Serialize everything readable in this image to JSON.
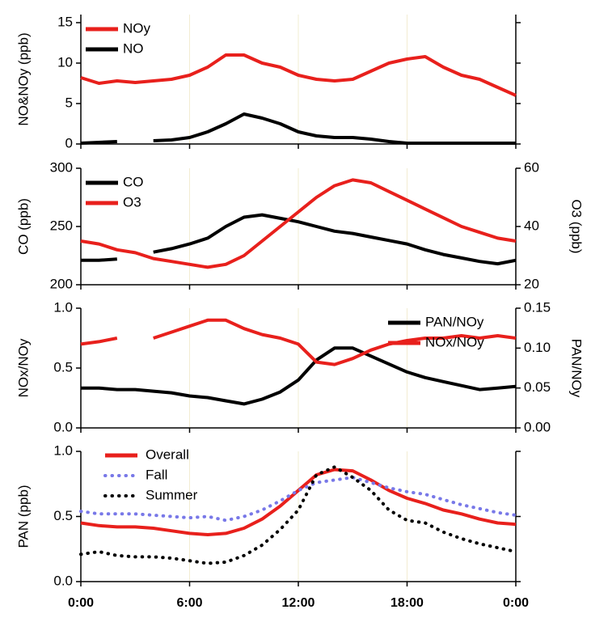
{
  "chart_data": [
    {
      "type": "line",
      "ylabel": "NO&NOy (ppb)",
      "legend": "upper left",
      "x": [
        0,
        1,
        2,
        3,
        4,
        5,
        6,
        7,
        8,
        9,
        10,
        11,
        12,
        13,
        14,
        15,
        16,
        17,
        18,
        19,
        20,
        21,
        22,
        23,
        24
      ],
      "xlim": [
        0,
        24
      ],
      "xticks": [
        0,
        6,
        12,
        18,
        24
      ],
      "ylim": [
        0,
        16
      ],
      "yticks": [
        0,
        5,
        10,
        15
      ],
      "grid": true,
      "series": [
        {
          "name": "NOy",
          "color": "#e8201c",
          "values": [
            8.2,
            7.5,
            7.8,
            7.6,
            7.8,
            8,
            8.5,
            9.5,
            11,
            11,
            10,
            9.5,
            8.5,
            8,
            7.8,
            8,
            9,
            10,
            10.5,
            10.8,
            9.5,
            8.5,
            8,
            7,
            6
          ]
        },
        {
          "name": "NO",
          "color": "#000000",
          "values": [
            0.1,
            0.2,
            0.3,
            null,
            0.4,
            0.5,
            0.8,
            1.5,
            2.5,
            3.7,
            3.2,
            2.5,
            1.5,
            1,
            0.8,
            0.8,
            0.6,
            0.3,
            0.1,
            0.1,
            0.1,
            0.1,
            0.1,
            0.1,
            0.1
          ]
        }
      ]
    },
    {
      "type": "line",
      "ylabel": "CO (ppb)",
      "y2label": "O3 (ppb)",
      "legend": "upper left",
      "x": [
        0,
        1,
        2,
        3,
        4,
        5,
        6,
        7,
        8,
        9,
        10,
        11,
        12,
        13,
        14,
        15,
        16,
        17,
        18,
        19,
        20,
        21,
        22,
        23,
        24
      ],
      "xlim": [
        0,
        24
      ],
      "xticks": [
        0,
        6,
        12,
        18,
        24
      ],
      "ylim": [
        200,
        300
      ],
      "yticks": [
        200,
        250,
        300
      ],
      "y2lim": [
        20,
        60
      ],
      "y2ticks": [
        20,
        40,
        60
      ],
      "grid": true,
      "series": [
        {
          "name": "CO",
          "color": "#000000",
          "values": [
            221,
            221,
            222,
            null,
            228,
            231,
            235,
            240,
            250,
            258,
            260,
            257,
            254,
            250,
            246,
            244,
            241,
            238,
            235,
            230,
            226,
            223,
            220,
            218,
            221
          ]
        },
        {
          "name": "O3",
          "color": "#e8201c",
          "axis": "y2",
          "values": [
            35,
            34,
            32,
            31,
            29,
            28,
            27,
            26,
            27,
            30,
            35,
            40,
            45,
            50,
            54,
            56,
            55,
            52,
            49,
            46,
            43,
            40,
            38,
            36,
            35
          ]
        }
      ]
    },
    {
      "type": "line",
      "ylabel": "NOx/NOy",
      "y2label": "PAN/NOy",
      "legend": "upper right",
      "x": [
        0,
        1,
        2,
        3,
        4,
        5,
        6,
        7,
        8,
        9,
        10,
        11,
        12,
        13,
        14,
        15,
        16,
        17,
        18,
        19,
        20,
        21,
        22,
        23,
        24
      ],
      "xlim": [
        0,
        24
      ],
      "xticks": [
        0,
        6,
        12,
        18,
        24
      ],
      "ylim": [
        0,
        1
      ],
      "yticks": [
        {
          "value": 0,
          "label": "0.0"
        },
        {
          "value": 0.5,
          "label": "0.5"
        },
        {
          "value": 1,
          "label": "1.0"
        }
      ],
      "y2lim": [
        0,
        0.15
      ],
      "y2ticks": [
        {
          "value": 0,
          "label": "0.00"
        },
        {
          "value": 0.05,
          "label": "0.05"
        },
        {
          "value": 0.1,
          "label": "0.10"
        },
        {
          "value": 0.15,
          "label": "0.15"
        }
      ],
      "grid": true,
      "series": [
        {
          "name": "PAN/NOy",
          "color": "#000000",
          "axis": "y2",
          "values": [
            0.05,
            0.05,
            0.048,
            0.048,
            0.046,
            0.044,
            0.04,
            0.038,
            0.034,
            0.03,
            0.036,
            0.045,
            0.06,
            0.085,
            0.1,
            0.1,
            0.09,
            0.08,
            0.07,
            0.063,
            0.058,
            0.053,
            0.048,
            0.05,
            0.052
          ]
        },
        {
          "name": "NOx/NOy",
          "color": "#e8201c",
          "values": [
            0.7,
            0.72,
            0.75,
            null,
            0.75,
            0.8,
            0.85,
            0.9,
            0.9,
            0.83,
            0.78,
            0.75,
            0.7,
            0.55,
            0.53,
            0.58,
            0.65,
            0.7,
            0.73,
            0.75,
            0.75,
            0.77,
            0.75,
            0.77,
            0.75
          ]
        }
      ]
    },
    {
      "type": "line",
      "ylabel": "PAN (ppb)",
      "legend": "upper left",
      "x": [
        0,
        1,
        2,
        3,
        4,
        5,
        6,
        7,
        8,
        9,
        10,
        11,
        12,
        13,
        14,
        15,
        16,
        17,
        18,
        19,
        20,
        21,
        22,
        23,
        24
      ],
      "xlim": [
        0,
        24
      ],
      "xticks": [
        {
          "value": 0,
          "label": "0:00"
        },
        {
          "value": 6,
          "label": "6:00"
        },
        {
          "value": 12,
          "label": "12:00"
        },
        {
          "value": 18,
          "label": "18:00"
        },
        {
          "value": 24,
          "label": "0:00"
        }
      ],
      "ylim": [
        0,
        1
      ],
      "yticks": [
        {
          "value": 0,
          "label": "0.0"
        },
        {
          "value": 0.5,
          "label": "0.5"
        },
        {
          "value": 1,
          "label": "1.0"
        }
      ],
      "grid": true,
      "series": [
        {
          "name": "Overall",
          "color": "#e8201c",
          "style": "solid",
          "values": [
            0.45,
            0.43,
            0.42,
            0.42,
            0.41,
            0.39,
            0.37,
            0.36,
            0.37,
            0.41,
            0.48,
            0.58,
            0.7,
            0.82,
            0.86,
            0.85,
            0.78,
            0.7,
            0.64,
            0.6,
            0.55,
            0.52,
            0.48,
            0.45,
            0.44
          ]
        },
        {
          "name": "Fall",
          "color": "#7878e8",
          "style": "dotted",
          "values": [
            0.54,
            0.52,
            0.52,
            0.52,
            0.51,
            0.5,
            0.49,
            0.5,
            0.47,
            0.5,
            0.55,
            0.62,
            0.7,
            0.76,
            0.78,
            0.8,
            0.76,
            0.72,
            0.69,
            0.67,
            0.63,
            0.59,
            0.56,
            0.53,
            0.51
          ]
        },
        {
          "name": "Summer",
          "color": "#000000",
          "style": "dotted",
          "values": [
            0.21,
            0.23,
            0.2,
            0.19,
            0.19,
            0.18,
            0.16,
            0.14,
            0.15,
            0.2,
            0.28,
            0.4,
            0.55,
            0.82,
            0.88,
            0.8,
            0.7,
            0.55,
            0.47,
            0.45,
            0.38,
            0.33,
            0.29,
            0.26,
            0.23
          ]
        }
      ]
    }
  ]
}
